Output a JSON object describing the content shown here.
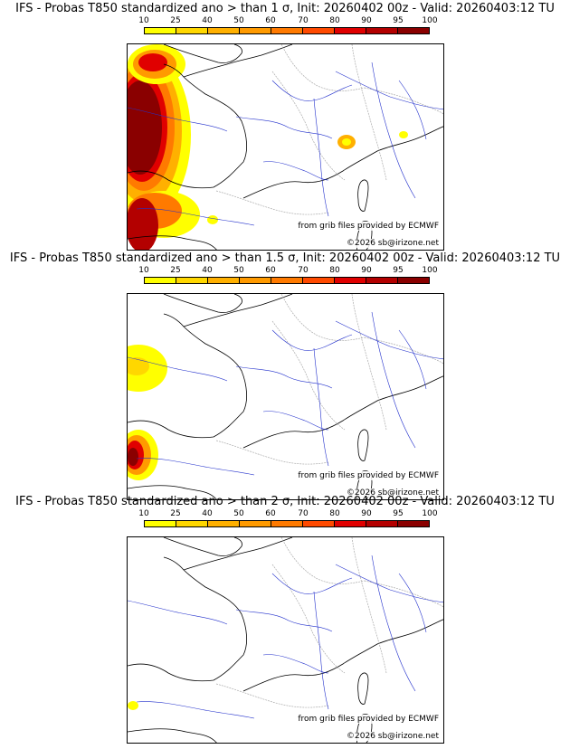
{
  "panels": [
    {
      "title": "IFS - Probas T850  standardized ano > than 1 σ, Init: 20260402 00z - Valid: 20260403:12 TU",
      "probability_coverage_level": "high"
    },
    {
      "title": "IFS - Probas T850  standardized ano > than 1.5 σ, Init: 20260402 00z - Valid: 20260403:12 TU",
      "probability_coverage_level": "medium"
    },
    {
      "title": "IFS - Probas T850  standardized ano > than 2 σ, Init: 20260402 00z - Valid: 20260403:12 TU",
      "probability_coverage_level": "low"
    }
  ],
  "legend": {
    "ticks": [
      "10",
      "25",
      "40",
      "50",
      "60",
      "70",
      "80",
      "90",
      "95",
      "100"
    ],
    "colors": [
      "#ffff00",
      "#ffd700",
      "#ffb000",
      "#ff9a00",
      "#ff7a00",
      "#ff4a00",
      "#e00000",
      "#b30000",
      "#8a0000"
    ]
  },
  "credit": "from grib files provided by ECMWF",
  "copyright": "©2026 sb@irizone.net"
}
